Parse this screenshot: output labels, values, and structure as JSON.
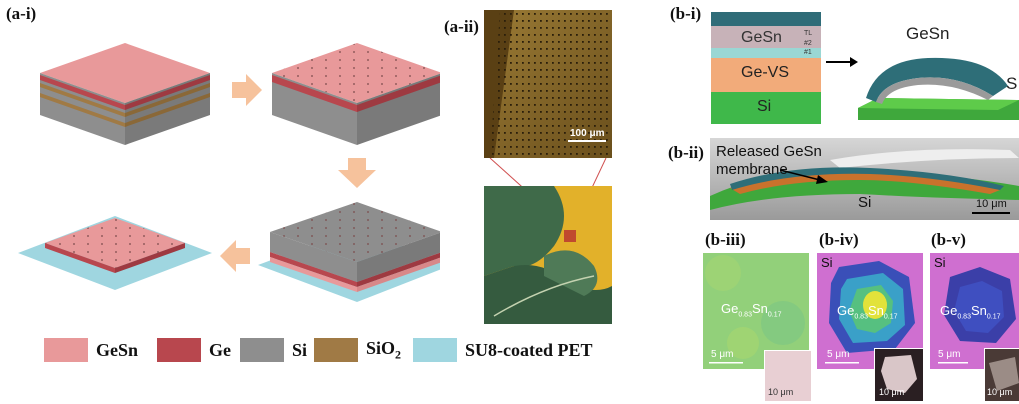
{
  "panels": {
    "a_i": "(a-i)",
    "a_ii": "(a-ii)",
    "b_i": "(b-i)",
    "b_ii": "(b-ii)",
    "b_iii": "(b-iii)",
    "b_iv": "(b-iv)",
    "b_v": "(b-v)"
  },
  "legend": [
    {
      "label": "GeSn",
      "color": "#e8999a"
    },
    {
      "label": "Ge",
      "color": "#b8474e"
    },
    {
      "label": "Si",
      "color": "#8e8e8e"
    },
    {
      "label": "SiO2",
      "label_main": "SiO",
      "label_sub": "2",
      "color": "#a07a45"
    },
    {
      "label": "SU8-coated PET",
      "color": "#9fd6e0"
    }
  ],
  "a_ii": {
    "scale_bar": "100 μm"
  },
  "b_i": {
    "stack": {
      "tl": "TL",
      "n2": "#2",
      "n1": "#1",
      "gesn": "GeSn",
      "gevs": "Ge-VS",
      "si": "Si"
    },
    "membrane_label": "GeSn",
    "substrate_label": "S"
  },
  "b_ii": {
    "annotation_line1": "Released GeSn",
    "annotation_line2": "membrane",
    "si_label": "Si",
    "scale_bar": "10 μm"
  },
  "b_iii": {
    "composition": {
      "ge": "Ge",
      "ge_sub": "0.83",
      "sn": "Sn",
      "sn_sub": "0.17"
    },
    "scale_bar": "5 μm",
    "inset_scale": "10 μm"
  },
  "b_iv": {
    "si_label": "Si",
    "composition": {
      "ge": "Ge",
      "ge_sub": "0.83",
      "sn": "Sn",
      "sn_sub": "0.17"
    },
    "scale_bar": "5 μm",
    "inset_scale": "10 μm"
  },
  "b_v": {
    "si_label": "Si",
    "composition": {
      "ge": "Ge",
      "ge_sub": "0.83",
      "sn": "Sn",
      "sn_sub": "0.17"
    },
    "scale_bar": "5 μm",
    "inset_scale": "10 μm"
  },
  "colors": {
    "gesn": "#e8999a",
    "ge": "#b8474e",
    "si": "#8e8e8e",
    "sio2": "#a07a45",
    "pet": "#9fd6e0",
    "arrow": "#f6c29c"
  }
}
